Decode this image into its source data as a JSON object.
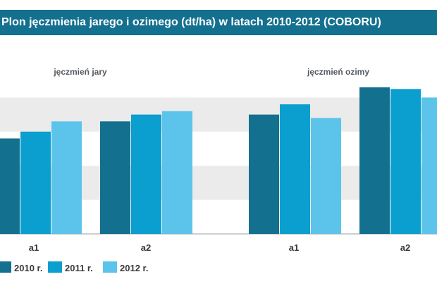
{
  "chart_data": {
    "type": "bar",
    "title": "Plon jęczmienia jarego i ozimego (dt/ha) w latach 2010-2012 (COBORU)",
    "groups": [
      {
        "label": "jęczmień jary",
        "categories": [
          "a1",
          "a2"
        ]
      },
      {
        "label": "jęczmień ozimy",
        "categories": [
          "a1",
          "a2"
        ]
      }
    ],
    "categories": [
      "a1",
      "a2",
      "a1",
      "a2"
    ],
    "series": [
      {
        "name": "2010 r.",
        "color": "#14708f",
        "values": [
          2.8,
          3.3,
          3.5,
          4.3
        ]
      },
      {
        "name": "2011 r.",
        "color": "#0a9fcf",
        "values": [
          3.0,
          3.5,
          3.8,
          4.25
        ]
      },
      {
        "name": "2012 r.",
        "color": "#5cc4ea",
        "values": [
          3.3,
          3.6,
          3.4,
          4.0
        ]
      }
    ],
    "ylim": [
      0,
      5
    ],
    "grid": true,
    "legend": "bottom-left"
  }
}
